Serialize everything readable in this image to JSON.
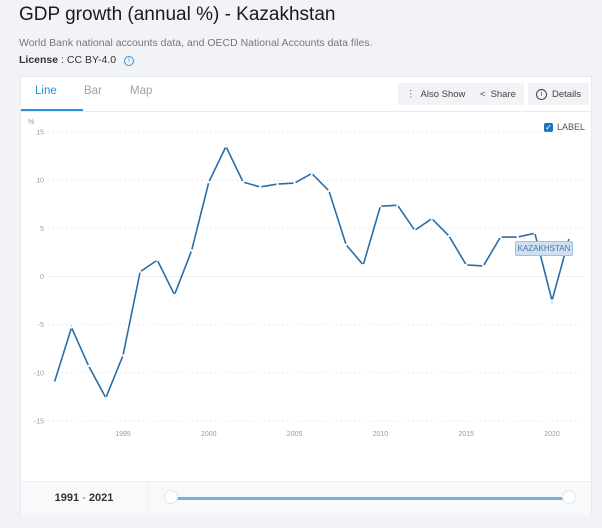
{
  "header": {
    "title": "GDP growth (annual %) - Kazakhstan",
    "source": "World Bank national accounts data, and OECD National Accounts data files.",
    "license_label": "License",
    "license_value": ": CC BY-4.0"
  },
  "tabs": [
    {
      "label": "Line",
      "active": true
    },
    {
      "label": "Bar",
      "active": false
    },
    {
      "label": "Map",
      "active": false
    }
  ],
  "toolbar": {
    "also_show": "Also Show",
    "share": "Share",
    "details": "Details"
  },
  "label_toggle": {
    "label": "LABEL",
    "checked": true
  },
  "range": {
    "start": "1991",
    "sep": "-",
    "end": "2021"
  },
  "chart_data": {
    "type": "line",
    "ylabel": "%",
    "ylim": [
      -15,
      15
    ],
    "yticks": [
      "15",
      "10",
      "5",
      "0",
      "-5",
      "-10",
      "-15"
    ],
    "xticks": [
      "1995",
      "2000",
      "2005",
      "2010",
      "2015",
      "2020"
    ],
    "grid": true,
    "series": [
      {
        "name": "KAZAKHSTAN",
        "color": "#2a6ea8",
        "x": [
          1991,
          1992,
          1993,
          1994,
          1995,
          1996,
          1997,
          1998,
          1999,
          2000,
          2001,
          2002,
          2003,
          2004,
          2005,
          2006,
          2007,
          2008,
          2009,
          2010,
          2011,
          2012,
          2013,
          2014,
          2015,
          2016,
          2017,
          2018,
          2019,
          2020,
          2021
        ],
        "y": [
          -11.0,
          -5.3,
          -9.3,
          -12.6,
          -8.2,
          0.5,
          1.7,
          -1.9,
          2.7,
          9.8,
          13.5,
          9.8,
          9.3,
          9.6,
          9.7,
          10.7,
          8.9,
          3.3,
          1.2,
          7.3,
          7.4,
          4.8,
          6.0,
          4.2,
          1.2,
          1.1,
          4.1,
          4.1,
          4.5,
          -2.5,
          4.0
        ]
      }
    ]
  }
}
